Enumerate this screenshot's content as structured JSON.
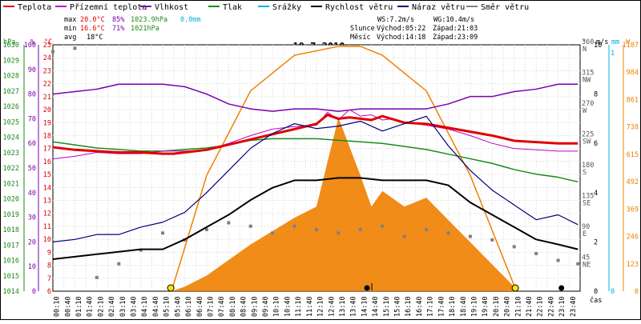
{
  "legend": [
    {
      "label": "Teplota",
      "color": "#e00000"
    },
    {
      "label": "Přízemní teplota",
      "color": "#c000c0"
    },
    {
      "label": "Vlhkost",
      "color": "#7a00b0"
    },
    {
      "label": "Tlak",
      "color": "#1a8a1a"
    },
    {
      "label": "Srážky",
      "color": "#00b0e0"
    },
    {
      "label": "Rychlost větru",
      "color": "#000000"
    },
    {
      "label": "Náraz větru",
      "color": "#00007a"
    },
    {
      "label": "Směr větru",
      "color": "#808080"
    }
  ],
  "stats": {
    "max": {
      "label": "max",
      "temp": "20.0°C",
      "hum": "85%",
      "press": "1023.9hPa",
      "rain": "0.0mm"
    },
    "min": {
      "label": "min",
      "temp": "16.6°C",
      "hum": "71%",
      "press": "1021hPa"
    },
    "avg": {
      "label": "avg",
      "temp": "18°C"
    }
  },
  "wind_info": {
    "ws": "WS:7.2m/s",
    "wg": "WG:10.4m/s"
  },
  "sun_info": {
    "label": "Slunce",
    "rise": "Východ:05:22",
    "set": "Západ:21:03"
  },
  "moon_info": {
    "label": "Měsíc",
    "rise": "Východ:14:18",
    "set": "Západ:23:09"
  },
  "title": "19.7.2010",
  "axes": {
    "hpa_unit": "hPa",
    "pct_unit": "%",
    "c_unit": "°C",
    "dir_unit": "°",
    "ms_unit": "m/s",
    "mm_unit": "mm",
    "w_unit": "W",
    "time_label": "čas",
    "hpa_ticks": [
      "1030",
      "1029",
      "1028",
      "1027",
      "1026",
      "1025",
      "1024",
      "1023",
      "1022",
      "1021",
      "1020",
      "1019",
      "1018",
      "1017",
      "1016",
      "1015",
      "1014"
    ],
    "pct_ticks": [
      "100",
      "90",
      "80",
      "70",
      "60",
      "50",
      "40",
      "30",
      "20",
      "10",
      "0"
    ],
    "c_ticks": [
      "25",
      "24",
      "23",
      "22",
      "21",
      "20",
      "19",
      "18",
      "17",
      "16",
      "15",
      "14",
      "13",
      "12",
      "11",
      "10",
      "9",
      "8",
      "7",
      "6"
    ],
    "dir_ticks": [
      {
        "deg": "360",
        "dir": "N"
      },
      {
        "deg": "315",
        "dir": "NW"
      },
      {
        "deg": "270",
        "dir": "W"
      },
      {
        "deg": "225",
        "dir": "SW"
      },
      {
        "deg": "180",
        "dir": "S"
      },
      {
        "deg": "135",
        "dir": "SE"
      },
      {
        "deg": "90",
        "dir": "E"
      },
      {
        "deg": "45",
        "dir": "NE"
      }
    ],
    "ms_ticks": [
      "10",
      "8",
      "6",
      "4",
      "2",
      "0"
    ],
    "mm_ticks": [
      "1",
      "0"
    ],
    "w_ticks": [
      "1107",
      "984",
      "861",
      "738",
      "615",
      "492",
      "369",
      "246",
      "123",
      "0"
    ],
    "time_ticks": [
      "00:10",
      "00:40",
      "01:10",
      "01:40",
      "02:10",
      "02:40",
      "03:10",
      "03:40",
      "04:10",
      "04:40",
      "05:10",
      "05:40",
      "06:10",
      "06:40",
      "07:10",
      "07:40",
      "08:10",
      "08:40",
      "09:10",
      "09:40",
      "10:10",
      "10:40",
      "11:10",
      "11:40",
      "12:10",
      "12:40",
      "13:10",
      "13:40",
      "14:10",
      "14:40",
      "15:10",
      "15:40",
      "16:10",
      "16:40",
      "17:10",
      "17:40",
      "18:10",
      "18:40",
      "19:10",
      "19:40",
      "20:10",
      "20:40",
      "21:10",
      "21:40",
      "22:10",
      "22:40",
      "23:10",
      "23:40"
    ]
  },
  "chart_data": {
    "type": "line",
    "title": "19.7.2010",
    "xlabel": "čas",
    "x_range": [
      "00:00",
      "24:00"
    ],
    "ylim_c": [
      6,
      25
    ],
    "ylim_pct": [
      0,
      100
    ],
    "ylim_hpa": [
      1014,
      1030
    ],
    "ylim_ms": [
      0,
      10
    ],
    "ylim_w": [
      0,
      1107
    ],
    "ylim_deg": [
      0,
      360
    ],
    "grid": true,
    "legend": "top",
    "series": [
      {
        "name": "Teplota",
        "unit": "°C",
        "color": "#e00000",
        "x": [
          0,
          1,
          2,
          3,
          4,
          5,
          5.5,
          6,
          7,
          8,
          9,
          10,
          11,
          12,
          12.5,
          13,
          13.5,
          14,
          14.5,
          15,
          16,
          17,
          18,
          19,
          20,
          21,
          22,
          23,
          23.9
        ],
        "y": [
          17.1,
          16.9,
          16.8,
          16.7,
          16.7,
          16.6,
          16.6,
          16.7,
          16.9,
          17.3,
          17.7,
          18.1,
          18.5,
          18.9,
          19.6,
          19.3,
          19.4,
          19.3,
          19.2,
          19.5,
          19.0,
          18.9,
          18.6,
          18.3,
          18.0,
          17.6,
          17.5,
          17.4,
          17.4
        ]
      },
      {
        "name": "Přízemní teplota",
        "unit": "°C",
        "color": "#c000c0",
        "x": [
          0,
          1,
          2,
          3,
          4,
          5,
          6,
          7,
          8,
          9,
          10,
          11,
          12,
          12.5,
          13,
          13.5,
          14,
          14.5,
          15,
          15.5,
          16,
          17,
          18,
          19,
          20,
          21,
          22,
          23,
          23.9
        ],
        "y": [
          16.2,
          16.4,
          16.7,
          16.6,
          16.6,
          16.8,
          16.8,
          16.9,
          17.4,
          18.0,
          18.5,
          18.7,
          18.8,
          19.8,
          19.2,
          20.0,
          19.5,
          19.6,
          19.2,
          19.3,
          19.0,
          18.8,
          18.5,
          18.0,
          17.4,
          17.0,
          16.9,
          16.8,
          16.8
        ]
      },
      {
        "name": "Vlhkost",
        "unit": "%",
        "color": "#7a00b0",
        "x": [
          0,
          1,
          2,
          3,
          4,
          5,
          6,
          7,
          8,
          9,
          10,
          11,
          12,
          13,
          14,
          15,
          16,
          17,
          18,
          19,
          20,
          21,
          22,
          23,
          23.9
        ],
        "y": [
          80,
          81,
          82,
          84,
          84,
          84,
          83,
          80,
          76,
          74,
          73,
          74,
          74,
          73,
          74,
          74,
          74,
          74,
          76,
          79,
          79,
          81,
          82,
          84,
          84
        ]
      },
      {
        "name": "Tlak",
        "unit": "hPa",
        "color": "#1a8a1a",
        "x": [
          0,
          1,
          2,
          3,
          4,
          5,
          6,
          7,
          8,
          9,
          10,
          11,
          12,
          13,
          14,
          15,
          16,
          17,
          18,
          19,
          20,
          21,
          22,
          23,
          23.9
        ],
        "y": [
          1023.7,
          1023.5,
          1023.3,
          1023.2,
          1023.1,
          1023.1,
          1023.2,
          1023.3,
          1023.5,
          1023.8,
          1023.9,
          1023.9,
          1023.9,
          1023.8,
          1023.7,
          1023.6,
          1023.4,
          1023.2,
          1022.9,
          1022.6,
          1022.3,
          1021.9,
          1021.6,
          1021.4,
          1021.1
        ]
      },
      {
        "name": "Srážky",
        "unit": "mm",
        "color": "#00b0e0",
        "x": [
          0,
          23.9
        ],
        "y": [
          0.0,
          0.0
        ]
      },
      {
        "name": "Rychlost větru",
        "unit": "m/s",
        "color": "#000000",
        "x": [
          0,
          1,
          2,
          3,
          4,
          5,
          6,
          7,
          8,
          9,
          10,
          11,
          12,
          13,
          14,
          15,
          16,
          17,
          18,
          19,
          20,
          21,
          22,
          23,
          23.9
        ],
        "y": [
          1.3,
          1.4,
          1.5,
          1.6,
          1.7,
          1.7,
          2.1,
          2.6,
          3.1,
          3.7,
          4.2,
          4.5,
          4.5,
          4.6,
          4.6,
          4.5,
          4.5,
          4.5,
          4.3,
          3.6,
          3.1,
          2.6,
          2.1,
          1.9,
          1.7
        ]
      },
      {
        "name": "Náraz větru",
        "unit": "m/s",
        "color": "#00007a",
        "x": [
          0,
          1,
          2,
          3,
          4,
          5,
          6,
          7,
          8,
          9,
          10,
          11,
          12,
          13,
          14,
          15,
          16,
          17,
          18,
          19,
          20,
          21,
          22,
          23,
          23.9
        ],
        "y": [
          2.0,
          2.1,
          2.3,
          2.3,
          2.6,
          2.8,
          3.2,
          4.0,
          4.9,
          5.8,
          6.4,
          6.8,
          6.6,
          6.7,
          6.9,
          6.5,
          6.8,
          7.1,
          5.9,
          4.9,
          4.1,
          3.5,
          2.9,
          3.1,
          2.7
        ]
      },
      {
        "name": "Směr větru",
        "unit": "°",
        "color": "#808080",
        "x": [
          0,
          1,
          2,
          3,
          4,
          5,
          6,
          7,
          8,
          9,
          10,
          11,
          12,
          13,
          14,
          15,
          16,
          17,
          18,
          19,
          20,
          21,
          22,
          23,
          23.9
        ],
        "y": [
          350,
          355,
          20,
          40,
          60,
          85,
          75,
          90,
          100,
          95,
          85,
          95,
          90,
          85,
          90,
          95,
          80,
          90,
          85,
          80,
          75,
          65,
          55,
          45,
          40
        ]
      },
      {
        "name": "Sluneční záření",
        "unit": "W/m²",
        "color": "#f08000",
        "x": [
          5.4,
          6,
          7,
          8,
          9,
          10,
          11,
          12,
          13,
          13.5,
          14,
          14.5,
          15,
          16,
          17,
          18,
          19,
          20,
          21,
          21.1
        ],
        "y": [
          0,
          20,
          70,
          140,
          210,
          270,
          330,
          380,
          780,
          650,
          520,
          380,
          450,
          380,
          420,
          320,
          220,
          120,
          20,
          0
        ]
      },
      {
        "name": "Teoretické záření",
        "unit": "W/m²",
        "color": "#f08000",
        "x": [
          5.4,
          7,
          9,
          11,
          13,
          14,
          15,
          17,
          19,
          21.1
        ],
        "y": [
          0,
          520,
          900,
          1060,
          1100,
          1100,
          1060,
          900,
          520,
          0
        ]
      }
    ],
    "markers": [
      {
        "kind": "sunrise",
        "time": "05:22"
      },
      {
        "kind": "sunset",
        "time": "21:03"
      },
      {
        "kind": "moonrise",
        "time": "14:18"
      },
      {
        "kind": "moonset",
        "time": "23:09"
      }
    ]
  }
}
